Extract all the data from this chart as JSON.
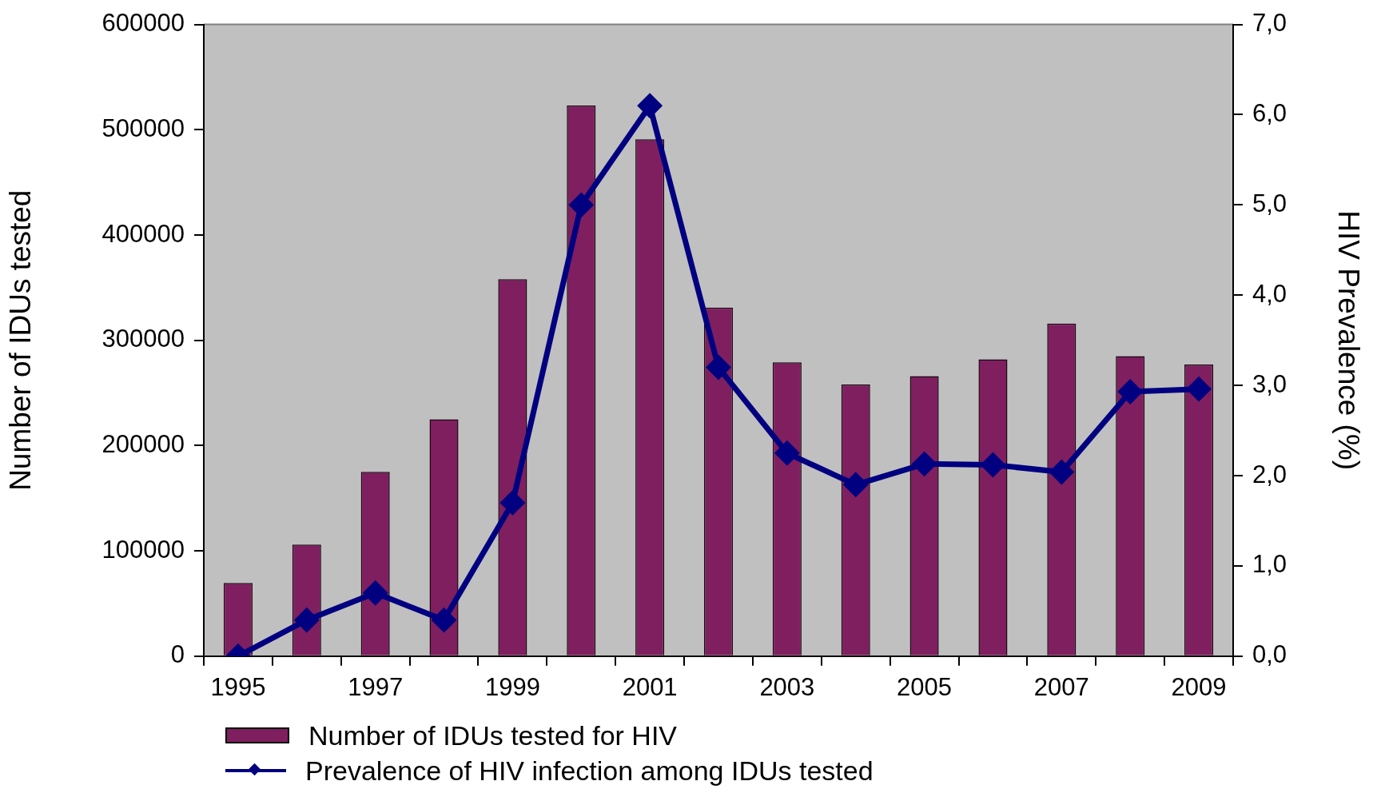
{
  "chart_data": {
    "type": "bar",
    "categories": [
      "1995",
      null,
      "1997",
      null,
      "1999",
      null,
      "2001",
      null,
      "2003",
      null,
      "2005",
      null,
      "2007",
      null,
      "2009"
    ],
    "ylabel": "Number of IDUs tested",
    "y2label": "HIV Prevalence (%)",
    "ylim": [
      0,
      600000
    ],
    "yticks": [
      0,
      100000,
      200000,
      300000,
      400000,
      500000,
      600000
    ],
    "y2lim": [
      0,
      7
    ],
    "y2ticks": [
      {
        "value": 0,
        "label": "0,0"
      },
      {
        "value": 1,
        "label": "1,0"
      },
      {
        "value": 2,
        "label": "2,0"
      },
      {
        "value": 3,
        "label": "3,0"
      },
      {
        "value": 4,
        "label": "4,0"
      },
      {
        "value": 5,
        "label": "5,0"
      },
      {
        "value": 6,
        "label": "6,0"
      },
      {
        "value": 7,
        "label": "7,0"
      }
    ],
    "legend": "bottom",
    "series": [
      {
        "name": "Number of IDUs tested for HIV",
        "color": "#7f1f5f",
        "values": [
          69500,
          106000,
          175000,
          225000,
          358000,
          523000,
          491000,
          331000,
          279000,
          258000,
          266000,
          282000,
          316000,
          285000,
          277000
        ]
      },
      {
        "name": "Prevalence of HIV infection among IDUs tested",
        "type": "line",
        "axis": "y2",
        "color": "#000080",
        "marker": "diamond",
        "line_style": "solid",
        "values": [
          0.0,
          0.4,
          0.7,
          0.4,
          1.7,
          5.0,
          6.1,
          3.2,
          2.25,
          1.9,
          2.13,
          2.12,
          2.04,
          2.93,
          2.96
        ]
      }
    ]
  }
}
